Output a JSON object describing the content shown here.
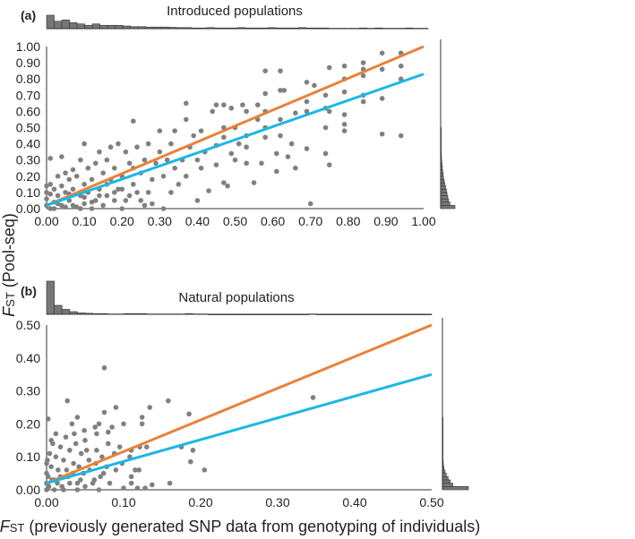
{
  "chart_data": [
    {
      "type": "scatter",
      "panel_label": "(a)",
      "title": "Introduced populations",
      "xlim": [
        0,
        1
      ],
      "ylim": [
        0,
        1
      ],
      "xticks": [
        "0.00",
        "0.10",
        "0.20",
        "0.30",
        "0.40",
        "0.50",
        "0.60",
        "0.70",
        "0.80",
        "0.90",
        "1.00"
      ],
      "yticks": [
        "0.00",
        "0.10",
        "0.20",
        "0.30",
        "0.40",
        "0.50",
        "0.60",
        "0.70",
        "0.80",
        "0.90",
        "1.00"
      ],
      "point_color": "#808080",
      "lines": [
        {
          "name": "1:1 line",
          "color": "#e8823a",
          "from": [
            0,
            0.02
          ],
          "to": [
            1,
            1.0
          ]
        },
        {
          "name": "regression",
          "color": "#1ab8e6",
          "from": [
            0,
            0.02
          ],
          "to": [
            1,
            0.83
          ]
        }
      ],
      "points": [
        [
          0.01,
          0.31
        ],
        [
          0.04,
          0.32
        ],
        [
          0.1,
          0.4
        ],
        [
          0.23,
          0.54
        ],
        [
          0.37,
          0.65
        ],
        [
          0.58,
          0.85
        ],
        [
          0.62,
          0.85
        ],
        [
          0.45,
          0.64
        ],
        [
          0.47,
          0.64
        ],
        [
          0.49,
          0.62
        ],
        [
          0.52,
          0.64
        ],
        [
          0.69,
          0.78
        ],
        [
          0.71,
          0.76
        ],
        [
          0.7,
          0.03
        ],
        [
          0.75,
          0.87
        ],
        [
          0.79,
          0.88
        ],
        [
          0.84,
          0.9
        ],
        [
          0.84,
          0.86
        ],
        [
          0.84,
          0.82
        ],
        [
          0.89,
          0.96
        ],
        [
          0.89,
          0.86
        ],
        [
          0.94,
          0.96
        ],
        [
          0.94,
          0.88
        ],
        [
          0.94,
          0.8
        ],
        [
          0.94,
          0.45
        ],
        [
          0.89,
          0.46
        ],
        [
          0.89,
          0.68
        ],
        [
          0.84,
          0.66
        ],
        [
          0.84,
          0.7
        ],
        [
          0.79,
          0.8
        ],
        [
          0.79,
          0.72
        ],
        [
          0.79,
          0.58
        ],
        [
          0.79,
          0.48
        ],
        [
          0.79,
          0.52
        ],
        [
          0.74,
          0.5
        ],
        [
          0.74,
          0.62
        ],
        [
          0.74,
          0.7
        ],
        [
          0.75,
          0.6
        ],
        [
          0.69,
          0.6
        ],
        [
          0.69,
          0.37
        ],
        [
          0.74,
          0.34
        ],
        [
          0.75,
          0.27
        ],
        [
          0.69,
          0.66
        ],
        [
          0.66,
          0.59
        ],
        [
          0.66,
          0.25
        ],
        [
          0.65,
          0.4
        ],
        [
          0.64,
          0.32
        ],
        [
          0.63,
          0.73
        ],
        [
          0.62,
          0.73
        ],
        [
          0.62,
          0.55
        ],
        [
          0.62,
          0.45
        ],
        [
          0.61,
          0.34
        ],
        [
          0.61,
          0.23
        ],
        [
          0.58,
          0.71
        ],
        [
          0.58,
          0.6
        ],
        [
          0.58,
          0.5
        ],
        [
          0.58,
          0.44
        ],
        [
          0.57,
          0.28
        ],
        [
          0.56,
          0.64
        ],
        [
          0.56,
          0.55
        ],
        [
          0.55,
          0.16
        ],
        [
          0.53,
          0.6
        ],
        [
          0.53,
          0.45
        ],
        [
          0.53,
          0.38
        ],
        [
          0.53,
          0.28
        ],
        [
          0.51,
          0.4
        ],
        [
          0.5,
          0.5
        ],
        [
          0.5,
          0.3
        ],
        [
          0.49,
          0.34
        ],
        [
          0.48,
          0.14
        ],
        [
          0.47,
          0.16
        ],
        [
          0.47,
          0.5
        ],
        [
          0.47,
          0.44
        ],
        [
          0.45,
          0.27
        ],
        [
          0.45,
          0.39
        ],
        [
          0.44,
          0.6
        ],
        [
          0.43,
          0.11
        ],
        [
          0.42,
          0.35
        ],
        [
          0.41,
          0.48
        ],
        [
          0.41,
          0.25
        ],
        [
          0.4,
          0.05
        ],
        [
          0.4,
          0.3
        ],
        [
          0.39,
          0.45
        ],
        [
          0.38,
          0.38
        ],
        [
          0.37,
          0.2
        ],
        [
          0.37,
          0.55
        ],
        [
          0.36,
          0.3
        ],
        [
          0.35,
          0.15
        ],
        [
          0.34,
          0.48
        ],
        [
          0.34,
          0.25
        ],
        [
          0.33,
          0.4
        ],
        [
          0.33,
          0.1
        ],
        [
          0.32,
          0.3
        ],
        [
          0.31,
          0.0
        ],
        [
          0.31,
          0.2
        ],
        [
          0.3,
          0.48
        ],
        [
          0.3,
          0.35
        ],
        [
          0.29,
          0.28
        ],
        [
          0.28,
          0.03
        ],
        [
          0.28,
          0.18
        ],
        [
          0.27,
          0.4
        ],
        [
          0.27,
          0.1
        ],
        [
          0.26,
          0.02
        ],
        [
          0.26,
          0.3
        ],
        [
          0.25,
          0.22
        ],
        [
          0.25,
          0.05
        ],
        [
          0.24,
          0.38
        ],
        [
          0.23,
          0.15
        ],
        [
          0.22,
          0.28
        ],
        [
          0.22,
          0.08
        ],
        [
          0.21,
          0.35
        ],
        [
          0.2,
          0.2
        ],
        [
          0.2,
          0.0
        ],
        [
          0.19,
          0.4
        ],
        [
          0.19,
          0.12
        ],
        [
          0.18,
          0.25
        ],
        [
          0.18,
          0.05
        ],
        [
          0.17,
          0.38
        ],
        [
          0.17,
          0.18
        ],
        [
          0.16,
          0.3
        ],
        [
          0.16,
          0.08
        ],
        [
          0.15,
          0.22
        ],
        [
          0.15,
          0.02
        ],
        [
          0.14,
          0.35
        ],
        [
          0.14,
          0.12
        ],
        [
          0.13,
          0.28
        ],
        [
          0.13,
          0.05
        ],
        [
          0.12,
          0.18
        ],
        [
          0.12,
          0.0
        ],
        [
          0.11,
          0.25
        ],
        [
          0.11,
          0.1
        ],
        [
          0.1,
          0.15
        ],
        [
          0.1,
          0.03
        ],
        [
          0.09,
          0.3
        ],
        [
          0.09,
          0.08
        ],
        [
          0.08,
          0.2
        ],
        [
          0.08,
          0.01
        ],
        [
          0.07,
          0.12
        ],
        [
          0.07,
          0.24
        ],
        [
          0.06,
          0.05
        ],
        [
          0.06,
          0.18
        ],
        [
          0.05,
          0.1
        ],
        [
          0.05,
          0.22
        ],
        [
          0.04,
          0.02
        ],
        [
          0.04,
          0.14
        ],
        [
          0.03,
          0.08
        ],
        [
          0.03,
          0.2
        ],
        [
          0.02,
          0.04
        ],
        [
          0.02,
          0.12
        ],
        [
          0.01,
          0.0
        ],
        [
          0.01,
          0.09
        ],
        [
          0.01,
          0.15
        ],
        [
          0.0,
          0.02
        ],
        [
          0.0,
          0.06
        ],
        [
          0.0,
          0.1
        ],
        [
          0.0,
          0.14
        ],
        [
          0.02,
          0.0
        ],
        [
          0.03,
          0.03
        ],
        [
          0.05,
          0.01
        ],
        [
          0.06,
          0.09
        ],
        [
          0.07,
          0.02
        ],
        [
          0.09,
          0.0
        ],
        [
          0.1,
          0.07
        ],
        [
          0.12,
          0.04
        ],
        [
          0.14,
          0.08
        ],
        [
          0.16,
          0.15
        ],
        [
          0.18,
          0.1
        ],
        [
          0.2,
          0.12
        ],
        [
          0.21,
          0.05
        ],
        [
          0.23,
          0.25
        ],
        [
          0.24,
          0.1
        ]
      ],
      "top_histogram": {
        "bin_width": 0.02,
        "relative_counts": [
          1.0,
          0.55,
          0.65,
          0.45,
          0.35,
          0.25,
          0.35,
          0.25,
          0.25,
          0.25,
          0.2,
          0.15,
          0.15,
          0.12,
          0.12,
          0.12,
          0.1,
          0.08,
          0.08,
          0.05,
          0.05,
          0.08,
          0.05,
          0.05,
          0.05,
          0.08,
          0.05,
          0.05,
          0.05,
          0.08,
          0.05,
          0.05,
          0.05,
          0.08,
          0.05,
          0.05,
          0.05,
          0.03,
          0.03,
          0.03,
          0.03,
          0.05,
          0.03,
          0.05,
          0.03,
          0.03,
          0.03,
          0.05,
          0.03,
          0.03
        ]
      },
      "right_histogram": {
        "bin_width": 0.02,
        "relative_counts": [
          1.0,
          0.65,
          0.55,
          0.5,
          0.45,
          0.4,
          0.35,
          0.3,
          0.25,
          0.2,
          0.18,
          0.15,
          0.12,
          0.1,
          0.08,
          0.06,
          0.05,
          0.04,
          0.03,
          0.02,
          0.02,
          0.02,
          0.02,
          0.02,
          0.02
        ]
      }
    },
    {
      "type": "scatter",
      "panel_label": "(b)",
      "title": "Natural populations",
      "xlim": [
        0,
        0.5
      ],
      "ylim": [
        0,
        0.5
      ],
      "xticks": [
        "0.00",
        "0.10",
        "0.20",
        "0.30",
        "0.40",
        "0.50"
      ],
      "yticks": [
        "0.00",
        "0.10",
        "0.20",
        "0.30",
        "0.40",
        "0.50"
      ],
      "point_color": "#808080",
      "lines": [
        {
          "name": "1:1 line",
          "color": "#e8823a",
          "from": [
            0,
            0.02
          ],
          "to": [
            0.5,
            0.5
          ]
        },
        {
          "name": "regression",
          "color": "#1ab8e6",
          "from": [
            0,
            0.02
          ],
          "to": [
            0.5,
            0.35
          ]
        }
      ],
      "points": [
        [
          0.075,
          0.37
        ],
        [
          0.027,
          0.27
        ],
        [
          0.158,
          0.27
        ],
        [
          0.346,
          0.28
        ],
        [
          0.185,
          0.23
        ],
        [
          0.134,
          0.25
        ],
        [
          0.09,
          0.25
        ],
        [
          0.075,
          0.235
        ],
        [
          0.124,
          0.22
        ],
        [
          0.124,
          0.2
        ],
        [
          0.04,
          0.22
        ],
        [
          0.002,
          0.215
        ],
        [
          0.033,
          0.2
        ],
        [
          0.063,
          0.19
        ],
        [
          0.068,
          0.2
        ],
        [
          0.085,
          0.19
        ],
        [
          0.1,
          0.2
        ],
        [
          0.036,
          0.17
        ],
        [
          0.049,
          0.18
        ],
        [
          0.065,
          0.17
        ],
        [
          0.08,
          0.175
        ],
        [
          0.175,
          0.13
        ],
        [
          0.19,
          0.12
        ],
        [
          0.187,
          0.085
        ],
        [
          0.205,
          0.06
        ],
        [
          0.16,
          0.02
        ],
        [
          0.137,
          0.015
        ],
        [
          0.121,
          0.13
        ],
        [
          0.13,
          0.13
        ],
        [
          0.11,
          0.12
        ],
        [
          0.108,
          0.1
        ],
        [
          0.12,
          0.06
        ],
        [
          0.115,
          0.06
        ],
        [
          0.11,
          0.04
        ],
        [
          0.11,
          0.02
        ],
        [
          0.1,
          0.005
        ],
        [
          0.118,
          0.005
        ],
        [
          0.128,
          0.005
        ],
        [
          0.095,
          0.13
        ],
        [
          0.098,
          0.08
        ],
        [
          0.09,
          0.06
        ],
        [
          0.088,
          0.11
        ],
        [
          0.08,
          0.14
        ],
        [
          0.078,
          0.07
        ],
        [
          0.072,
          0.1
        ],
        [
          0.07,
          0.04
        ],
        [
          0.065,
          0.12
        ],
        [
          0.06,
          0.02
        ],
        [
          0.055,
          0.09
        ],
        [
          0.05,
          0.15
        ],
        [
          0.048,
          0.05
        ],
        [
          0.045,
          0.11
        ],
        [
          0.04,
          0.02
        ],
        [
          0.038,
          0.14
        ],
        [
          0.035,
          0.08
        ],
        [
          0.03,
          0.12
        ],
        [
          0.028,
          0.04
        ],
        [
          0.025,
          0.16
        ],
        [
          0.022,
          0.09
        ],
        [
          0.02,
          0.01
        ],
        [
          0.018,
          0.13
        ],
        [
          0.015,
          0.06
        ],
        [
          0.012,
          0.1
        ],
        [
          0.01,
          0.03
        ],
        [
          0.008,
          0.14
        ],
        [
          0.006,
          0.07
        ],
        [
          0.004,
          0.11
        ],
        [
          0.002,
          0.04
        ],
        [
          0.001,
          0.09
        ],
        [
          0.0,
          0.0
        ],
        [
          0.0,
          0.02
        ],
        [
          0.0,
          0.05
        ],
        [
          0.0,
          0.08
        ],
        [
          0.003,
          0.01
        ],
        [
          0.007,
          0.03
        ],
        [
          0.01,
          0.0
        ],
        [
          0.014,
          0.02
        ],
        [
          0.018,
          0.04
        ],
        [
          0.022,
          0.0
        ],
        [
          0.026,
          0.06
        ],
        [
          0.03,
          0.02
        ],
        [
          0.034,
          0.05
        ],
        [
          0.04,
          0.0
        ],
        [
          0.044,
          0.03
        ],
        [
          0.05,
          0.01
        ],
        [
          0.056,
          0.06
        ],
        [
          0.062,
          0.03
        ],
        [
          0.068,
          0.0
        ],
        [
          0.074,
          0.05
        ],
        [
          0.082,
          0.02
        ],
        [
          0.064,
          0.08
        ],
        [
          0.052,
          0.12
        ],
        [
          0.042,
          0.07
        ],
        [
          0.012,
          0.17
        ],
        [
          0.006,
          0.15
        ]
      ],
      "top_histogram": {
        "bin_width": 0.01,
        "relative_counts": [
          1.0,
          0.27,
          0.15,
          0.08,
          0.04,
          0.03,
          0.02,
          0.02,
          0.01,
          0.01,
          0.02,
          0.02,
          0.02,
          0.01,
          0.01,
          0.01,
          0.01,
          0.01,
          0.02,
          0.01,
          0.01,
          0.0,
          0.0,
          0.0,
          0.0,
          0.0,
          0.0,
          0.0,
          0.0,
          0.0,
          0.0,
          0.0,
          0.0,
          0.0,
          0.01,
          0.0,
          0.0,
          0.0,
          0.0,
          0.0,
          0.0,
          0.0,
          0.0,
          0.0,
          0.0,
          0.0,
          0.0,
          0.0,
          0.0,
          0.0
        ]
      },
      "right_histogram": {
        "bin_width": 0.01,
        "relative_counts": [
          1.0,
          0.4,
          0.3,
          0.22,
          0.15,
          0.1,
          0.06,
          0.04,
          0.03,
          0.02,
          0.02,
          0.02,
          0.01,
          0.01,
          0.01,
          0.01,
          0.01,
          0.01,
          0.01,
          0.01,
          0.01,
          0.01
        ]
      }
    }
  ],
  "axes": {
    "ylabel_main": "F",
    "ylabel_sub": "ST",
    "ylabel_rest": " (Pool-seq)",
    "xlabel_main": "F",
    "xlabel_sub": "ST",
    "xlabel_rest": " (previously generated SNP data from genotyping of individuals)"
  }
}
